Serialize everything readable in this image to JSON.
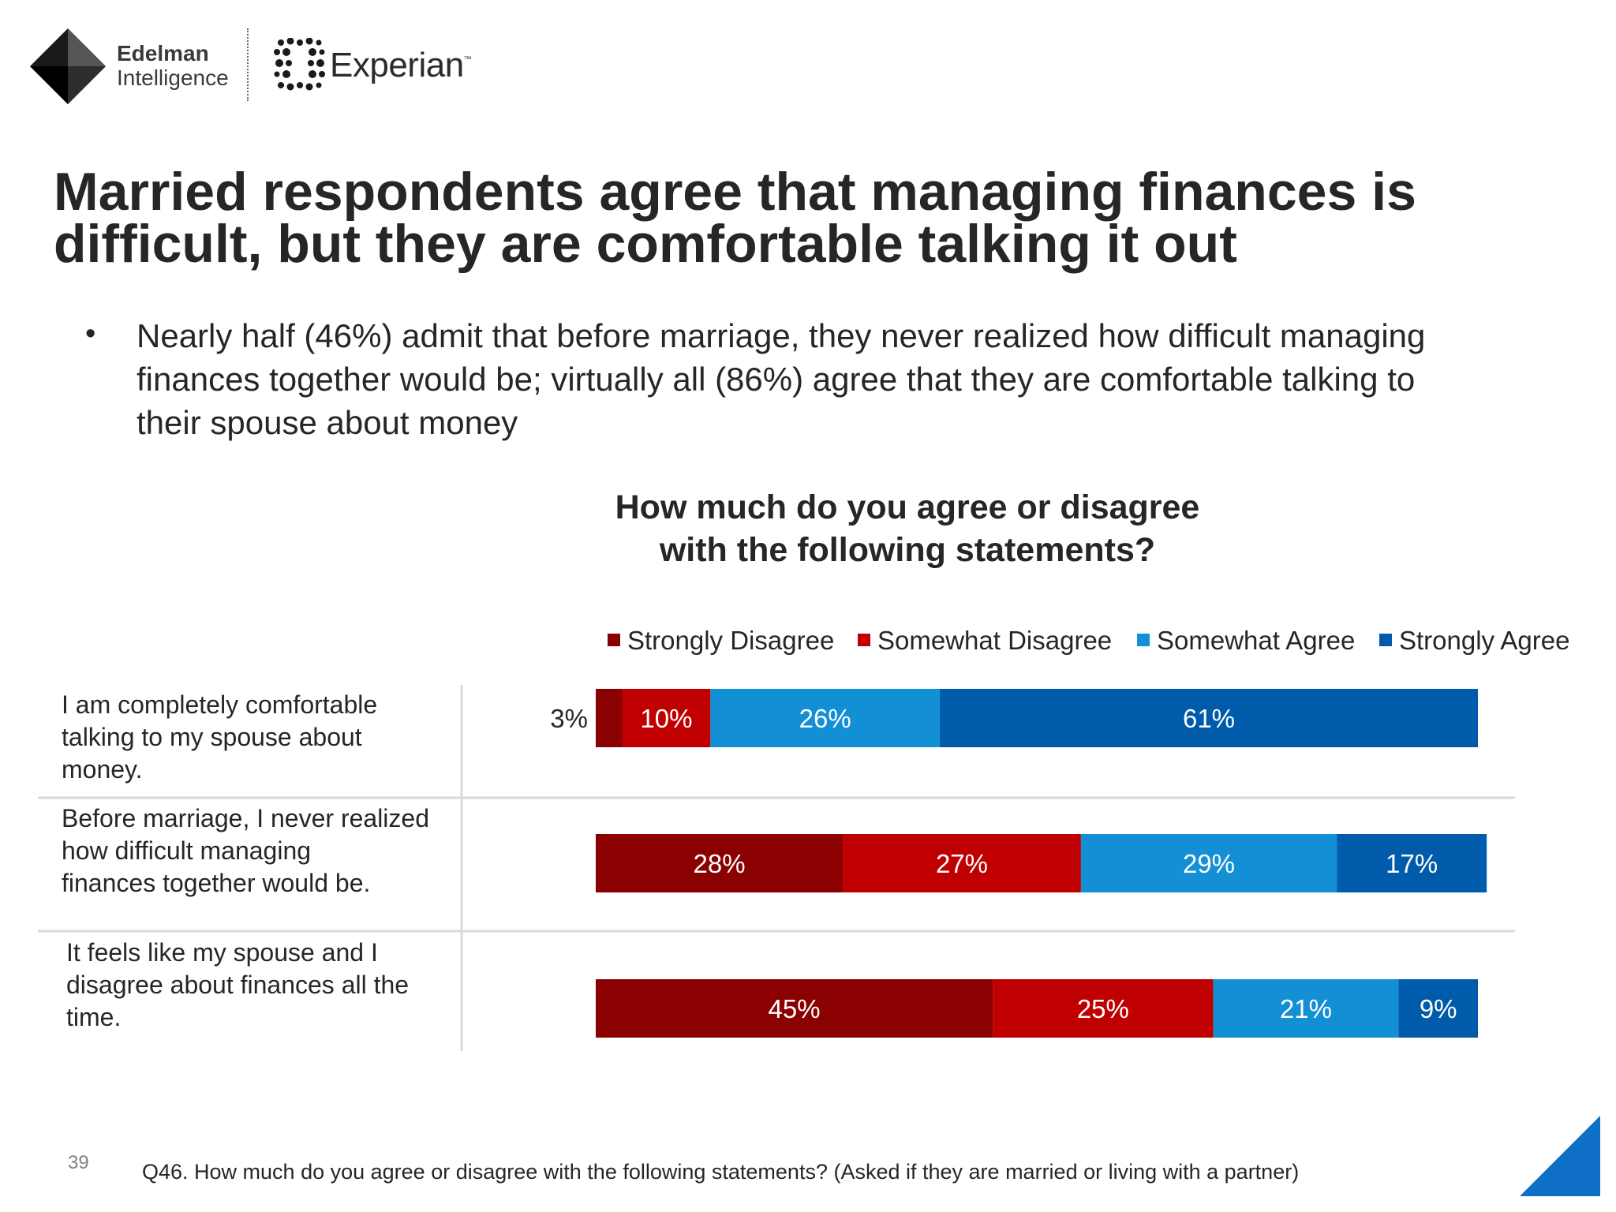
{
  "logos": {
    "edelman_line1": "Edelman",
    "edelman_line2": "Intelligence",
    "experian": "Experian",
    "experian_tm": "™"
  },
  "slide": {
    "headline": "Married respondents agree that managing finances is difficult, but they are comfortable talking it out",
    "bullet": "Nearly half (46%) admit that before marriage, they never realized how difficult managing finances together would be; virtually all (86%) agree that they are comfortable talking to their spouse about money",
    "page_number": "39",
    "footnote": "Q46. How much do you agree or disagree with the following statements? (Asked if they are married or living with a partner)"
  },
  "colors": {
    "strongly_disagree": "#8B0000",
    "somewhat_disagree": "#C00000",
    "somewhat_agree": "#138FD6",
    "strongly_agree": "#005BAA",
    "accent_triangle": "#0F6FC6"
  },
  "chart_data": {
    "type": "bar",
    "orientation": "horizontal",
    "stacked": true,
    "title": "How much do you agree or disagree with the following statements?",
    "title_lines": [
      "How much do you agree or disagree",
      "with the following statements?"
    ],
    "legend_position": "top",
    "grid": false,
    "xlim": [
      0,
      100
    ],
    "unit": "%",
    "categories": [
      "I am completely comfortable talking to my spouse about money.",
      "Before marriage, I never realized how difficult managing finances together would be.",
      "It feels like my spouse and I disagree about finances all the time."
    ],
    "category_lines": [
      [
        "I am completely comfortable",
        "talking to my spouse about",
        "money."
      ],
      [
        "Before marriage, I never realized",
        "how difficult managing",
        "finances together would be."
      ],
      [
        "It feels like my spouse and I",
        "disagree about finances all the",
        "time."
      ]
    ],
    "series": [
      {
        "name": "Strongly Disagree",
        "color": "#8B0000",
        "values": [
          3,
          28,
          45
        ],
        "labels": [
          "3%",
          "28%",
          "45%"
        ]
      },
      {
        "name": "Somewhat Disagree",
        "color": "#C00000",
        "values": [
          10,
          27,
          25
        ],
        "labels": [
          "10%",
          "27%",
          "25%"
        ]
      },
      {
        "name": "Somewhat Agree",
        "color": "#138FD6",
        "values": [
          26,
          29,
          21
        ],
        "labels": [
          "26%",
          "29%",
          "21%"
        ]
      },
      {
        "name": "Strongly Agree",
        "color": "#005BAA",
        "values": [
          61,
          17,
          9
        ],
        "labels": [
          "61%",
          "17%",
          "9%"
        ]
      }
    ]
  }
}
